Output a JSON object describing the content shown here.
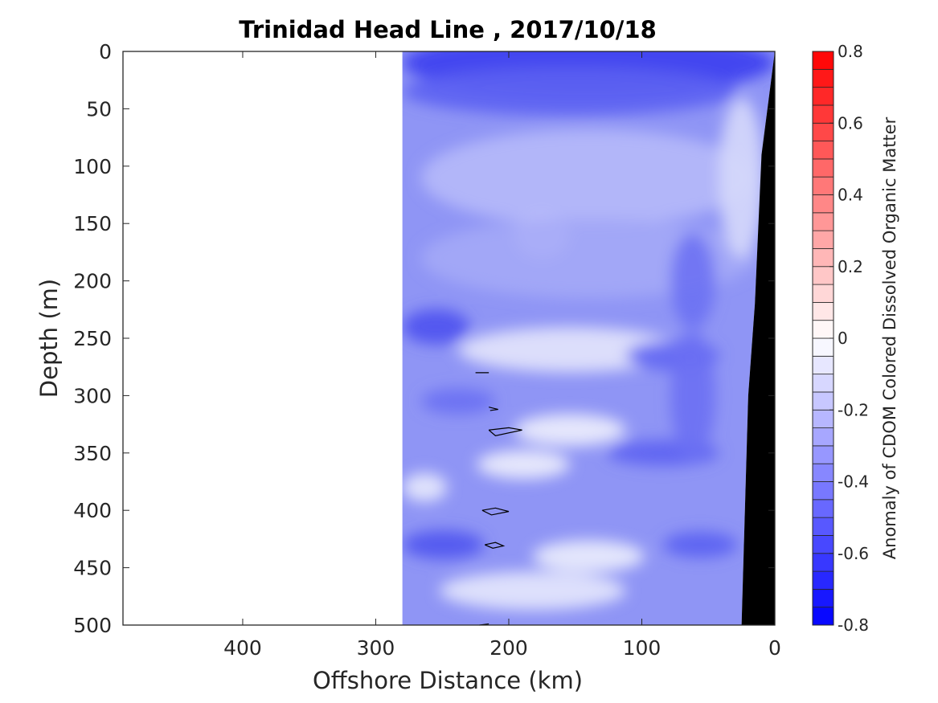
{
  "chart_data": {
    "type": "heatmap",
    "title": "Trinidad Head Line , 2017/10/18",
    "xlabel": "Offshore Distance (km)",
    "ylabel": "Depth (m)",
    "xlim": [
      490,
      0
    ],
    "ylim": [
      0,
      500
    ],
    "x_ticks": [
      400,
      300,
      200,
      100,
      0
    ],
    "y_ticks": [
      0,
      50,
      100,
      150,
      200,
      250,
      300,
      350,
      400,
      450,
      500
    ],
    "data_extent_x": [
      280,
      0
    ],
    "seafloor": [
      [
        0,
        0
      ],
      [
        10,
        90
      ],
      [
        15,
        220
      ],
      [
        20,
        300
      ],
      [
        25,
        500
      ]
    ],
    "zero_contours": [
      {
        "points": [
          [
            225,
            280
          ],
          [
            215,
            280
          ]
        ]
      },
      {
        "points": [
          [
            215,
            310
          ],
          [
            208,
            312
          ],
          [
            214,
            313
          ]
        ]
      },
      {
        "points": [
          [
            215,
            330
          ],
          [
            200,
            328
          ],
          [
            190,
            330
          ],
          [
            210,
            335
          ],
          [
            215,
            330
          ]
        ]
      },
      {
        "points": [
          [
            220,
            400
          ],
          [
            210,
            398
          ],
          [
            200,
            401
          ],
          [
            213,
            404
          ],
          [
            220,
            400
          ]
        ]
      },
      {
        "points": [
          [
            218,
            430
          ],
          [
            210,
            428
          ],
          [
            204,
            431
          ],
          [
            212,
            433
          ],
          [
            218,
            430
          ]
        ]
      },
      {
        "points": [
          [
            222,
            500
          ],
          [
            215,
            499
          ]
        ]
      }
    ],
    "colorbar": {
      "label": "Anomaly of CDOM Colored Dissolved Organic Matter",
      "range": [
        -0.8,
        0.8
      ],
      "step": 0.05,
      "ticks": [
        -0.8,
        -0.6,
        -0.4,
        -0.2,
        0,
        0.2,
        0.4,
        0.6,
        0.8
      ],
      "tick_labels": [
        "-0.8",
        "-0.6",
        "-0.4",
        "-0.2",
        "0",
        "0.2",
        "0.4",
        "0.6",
        "0.8"
      ],
      "low_color": "#0000ff",
      "mid_color": "#ffffff",
      "high_color": "#ff0000"
    },
    "colors": {
      "seafloor": "#000000",
      "contour": "#000000",
      "axis": "#262626"
    }
  }
}
